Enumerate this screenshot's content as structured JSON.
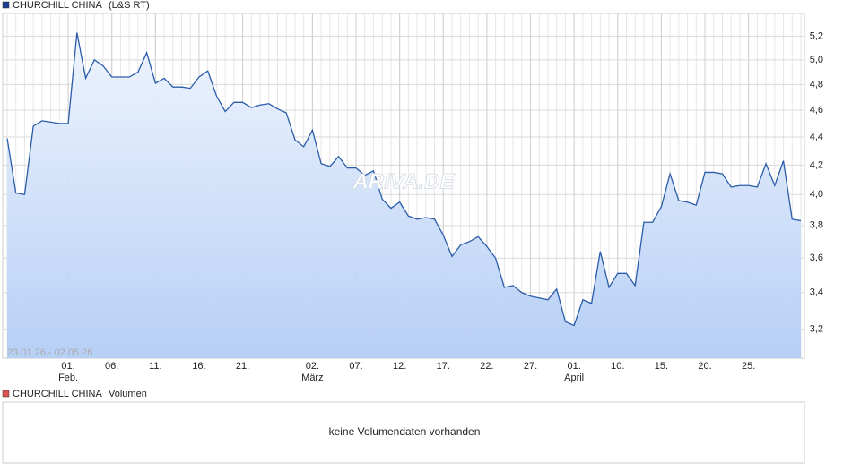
{
  "chart_data": {
    "type": "area",
    "title": "CHURCHILL CHINA",
    "subtitle": "(L&S RT)",
    "date_range": "23.01.26 - 02.05.26",
    "watermark": "ARIVA.DE",
    "color": "#2a5caa",
    "log_scale": true,
    "grid": true,
    "values": [
      4.39,
      4.01,
      4.0,
      4.48,
      4.52,
      4.51,
      4.5,
      4.5,
      5.23,
      4.85,
      5.0,
      4.95,
      4.86,
      4.86,
      4.86,
      4.9,
      5.06,
      4.81,
      4.85,
      4.78,
      4.78,
      4.77,
      4.86,
      4.91,
      4.71,
      4.59,
      4.66,
      4.66,
      4.62,
      4.64,
      4.65,
      4.61,
      4.58,
      4.38,
      4.33,
      4.45,
      4.21,
      4.19,
      4.26,
      4.18,
      4.18,
      4.13,
      4.16,
      3.97,
      3.91,
      3.95,
      3.86,
      3.84,
      3.85,
      3.84,
      3.74,
      3.61,
      3.68,
      3.7,
      3.73,
      3.67,
      3.6,
      3.43,
      3.44,
      3.4,
      3.38,
      3.37,
      3.36,
      3.42,
      3.24,
      3.22,
      3.36,
      3.34,
      3.64,
      3.43,
      3.51,
      3.51,
      3.44,
      3.82,
      3.82,
      3.92,
      4.14,
      3.96,
      3.95,
      3.93,
      4.15,
      4.15,
      4.14,
      4.05,
      4.06,
      4.06,
      4.05,
      4.21,
      4.06,
      4.23,
      3.84,
      3.83
    ],
    "xticks": [
      {
        "value": 7,
        "label": "01."
      },
      {
        "value": 12,
        "label": "06."
      },
      {
        "value": 17,
        "label": "11."
      },
      {
        "value": 22,
        "label": "16."
      },
      {
        "value": 27,
        "label": "21."
      },
      {
        "value": 35,
        "label": "02."
      },
      {
        "value": 40,
        "label": "07."
      },
      {
        "value": 45,
        "label": "12."
      },
      {
        "value": 50,
        "label": "17."
      },
      {
        "value": 55,
        "label": "22."
      },
      {
        "value": 60,
        "label": "27."
      },
      {
        "value": 65,
        "label": "01."
      },
      {
        "value": 70,
        "label": "10."
      },
      {
        "value": 75,
        "label": "15."
      },
      {
        "value": 80,
        "label": "20."
      },
      {
        "value": 85,
        "label": "25."
      }
    ],
    "month_labels": [
      {
        "value": 7,
        "label": "Feb."
      },
      {
        "value": 35,
        "label": "März"
      },
      {
        "value": 65,
        "label": "April"
      }
    ],
    "ylim": [
      3.05,
      5.4
    ],
    "yticks": [
      {
        "value": 3.2,
        "label": "3,2"
      },
      {
        "value": 3.4,
        "label": "3,4"
      },
      {
        "value": 3.6,
        "label": "3,6"
      },
      {
        "value": 3.8,
        "label": "3,8"
      },
      {
        "value": 4.0,
        "label": "4,0"
      },
      {
        "value": 4.2,
        "label": "4,2"
      },
      {
        "value": 4.4,
        "label": "4,4"
      },
      {
        "value": 4.6,
        "label": "4,6"
      },
      {
        "value": 4.8,
        "label": "4,8"
      },
      {
        "value": 5.0,
        "label": "5,0"
      },
      {
        "value": 5.2,
        "label": "5,2"
      }
    ]
  },
  "volume_panel": {
    "title": "CHURCHILL CHINA",
    "label": "Volumen",
    "message": "keine Volumendaten vorhanden"
  }
}
